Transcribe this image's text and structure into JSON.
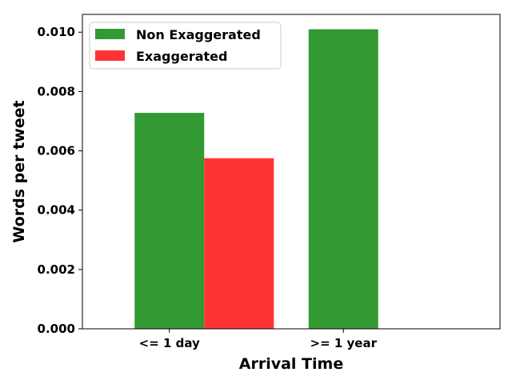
{
  "chart_data": {
    "type": "bar",
    "categories": [
      "<= 1 day",
      ">= 1 year"
    ],
    "series": [
      {
        "name": "Non Exaggerated",
        "color": "#339933",
        "values": [
          0.00728,
          0.0101
        ]
      },
      {
        "name": "Exaggerated",
        "color": "#ff3333",
        "values": [
          0.00575,
          null
        ]
      }
    ],
    "xlabel": "Arrival Time",
    "ylabel": "Words per tweet",
    "ylim": [
      0,
      0.0106
    ],
    "yticks": [
      0.0,
      0.002,
      0.004,
      0.006,
      0.008,
      0.01
    ],
    "ytick_labels": [
      "0.000",
      "0.002",
      "0.004",
      "0.006",
      "0.008",
      "0.010"
    ],
    "grid": false,
    "legend_position": "top-left"
  }
}
